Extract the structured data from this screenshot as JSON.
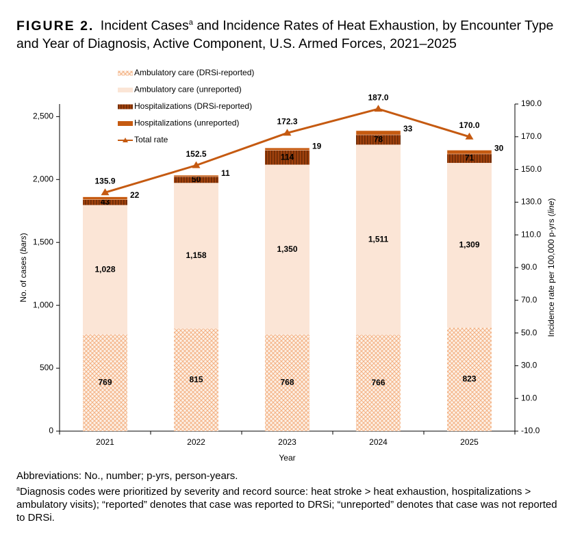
{
  "chart_data": {
    "type": "bar",
    "figure_label": "FIGURE 2.",
    "title": "Incident Cases",
    "title_sup": "a",
    "title_rest": "and Incidence Rates of Heat Exhaustion, by Encounter Type and Year of Diagnosis, Active Component, U.S. Armed Forces, 2021–2025",
    "x_label": "Year",
    "y_label": [
      "No. of cases (",
      "bars",
      ")"
    ],
    "y2_label": [
      "Incidence rate per 100,000 p-yrs (",
      "line",
      ")"
    ],
    "categories": [
      "2021",
      "2022",
      "2023",
      "2024",
      "2025"
    ],
    "ylim": [
      0,
      2600
    ],
    "yticks": [
      0,
      500,
      {
        "value": 1000,
        "label": "1,000"
      },
      {
        "value": 1500,
        "label": "1,500"
      },
      {
        "value": 2000,
        "label": "2,000"
      },
      {
        "value": 2500,
        "label": "2,500"
      }
    ],
    "y2lim": [
      -10,
      190
    ],
    "y2ticks": [
      {
        "value": -10,
        "label": "-10.0"
      },
      {
        "value": 10,
        "label": "10.0"
      },
      {
        "value": 30,
        "label": "30.0"
      },
      {
        "value": 50,
        "label": "50.0"
      },
      {
        "value": 70,
        "label": "70.0"
      },
      {
        "value": 90,
        "label": "90.0"
      },
      {
        "value": 110,
        "label": "110.0"
      },
      {
        "value": 130,
        "label": "130.0"
      },
      {
        "value": 150,
        "label": "150.0"
      },
      {
        "value": 170,
        "label": "170.0"
      },
      {
        "value": 190,
        "label": "190.0"
      }
    ],
    "series": [
      {
        "name": "Ambulatory care (DRSi-reported)",
        "color": "#f4b183",
        "values": [
          769,
          815,
          768,
          766,
          823
        ]
      },
      {
        "name": "Ambulatory care (unreported)",
        "color": "#fbe5d6",
        "values": [
          1028,
          1158,
          1350,
          1511,
          1309
        ],
        "value_labels": [
          "1,028",
          "1,158",
          "1,350",
          "1,511",
          "1,309"
        ]
      },
      {
        "name": "Hospitalizations (DRSi-reported)",
        "color": "#a0410d",
        "values": [
          43,
          50,
          114,
          78,
          71
        ]
      },
      {
        "name": "Hospitalizations (unreported)",
        "color": "#c55a11",
        "values": [
          22,
          11,
          19,
          33,
          30
        ]
      },
      {
        "name": "Total rate",
        "type": "line",
        "axis": "y2",
        "color": "#c55a11",
        "values": [
          135.9,
          152.5,
          172.3,
          187.0,
          170.0
        ],
        "value_labels": [
          "135.9",
          "152.5",
          "172.3",
          "187.0",
          "170.0"
        ]
      }
    ]
  },
  "footnotes": {
    "abbreviations": "Abbreviations: No., number; p-yrs, person-years.",
    "note_sup": "a",
    "note": "Diagnosis codes were prioritized by severity and record source: heat stroke > heat exhaustion, hospitalizations > ambulatory visits); “reported” denotes that case was reported to DRSi; “unreported” denotes that case was not reported to DRSi."
  }
}
